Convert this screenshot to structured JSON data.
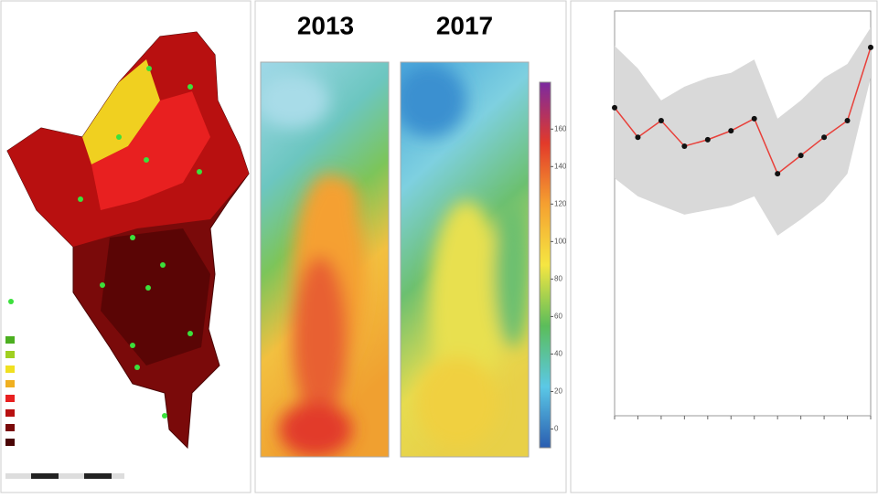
{
  "chart_data": [
    {
      "type": "heatmap",
      "panels": [
        "2013",
        "2017"
      ],
      "colors": [
        "#2a5db0",
        "#5bc8e6",
        "#5bbd5a",
        "#f5e642",
        "#f5a030",
        "#e23a2a",
        "#7b2aa0"
      ],
      "ylim": [
        -10,
        185
      ],
      "yticks": [
        0,
        20,
        40,
        60,
        80,
        100,
        120,
        140,
        160
      ]
    },
    {
      "type": "line",
      "categories": [
        null,
        null,
        null,
        null,
        null,
        null,
        null,
        null,
        null,
        null,
        null,
        null
      ],
      "ylim": [
        0,
        100
      ],
      "series": [
        {
          "color": "#e8403a",
          "values": [
            76.1,
            68.8,
            72.9,
            66.6,
            68.2,
            70.4,
            73.4,
            59.8,
            64.3,
            68.8,
            72.9,
            91.0
          ]
        }
      ],
      "band": {
        "color": "#d9d9d9",
        "upper": [
          91.4,
          85.8,
          77.9,
          81.3,
          83.5,
          84.7,
          88.0,
          73.4,
          77.9,
          83.5,
          86.9,
          95.9
        ],
        "lower": [
          58.7,
          54.2,
          51.9,
          49.7,
          50.8,
          51.9,
          54.2,
          44.5,
          48.5,
          53.0,
          59.8,
          83.5
        ]
      }
    }
  ]
}
